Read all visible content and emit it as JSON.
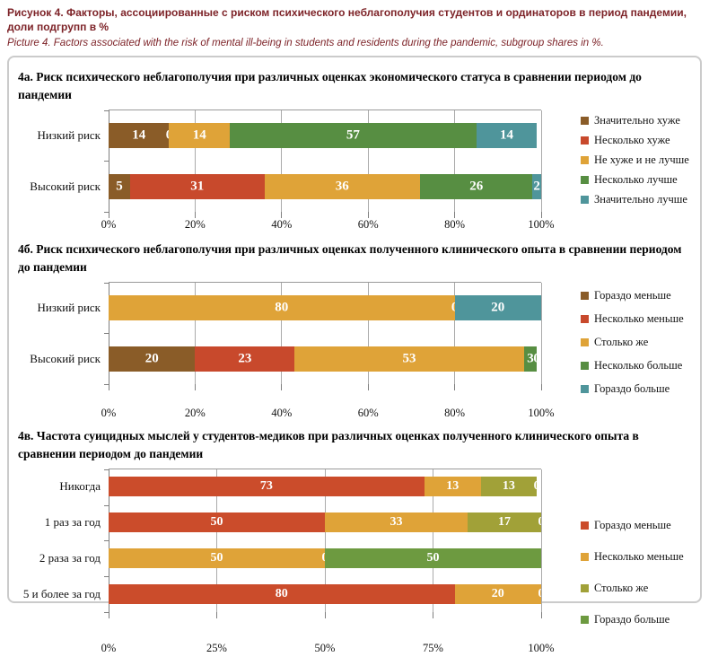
{
  "header": {
    "title_ru": "Рисунок 4. Факторы, ассоциированные с риском психического неблагополучия студентов и ординаторов в период пандемии, доли подгрупп в %",
    "title_en": "Picture 4. Factors associated with the risk of mental ill-being in students and residents during the pandemic, subgroup shares in %."
  },
  "chart_data": [
    {
      "id": "4a",
      "type": "bar",
      "stacked": true,
      "orientation": "horizontal",
      "title": "4а. Риск психического неблагополучия при различных оценках экономического статуса в сравнении периодом до пандемии",
      "categories": [
        "Низкий риск",
        "Высокий риск"
      ],
      "x_tick_labels": [
        "0%",
        "20%",
        "40%",
        "60%",
        "80%",
        "100%"
      ],
      "xlim": [
        0,
        100
      ],
      "legend_position": "right",
      "series": [
        {
          "name": "Значительно хуже",
          "color": "#8a5c28",
          "values": [
            14,
            5
          ]
        },
        {
          "name": "Несколько хуже",
          "color": "#c8492c",
          "values": [
            0,
            31
          ]
        },
        {
          "name": "Не хуже и не лучше",
          "color": "#dfa338",
          "values": [
            14,
            36
          ]
        },
        {
          "name": "Несколько лучше",
          "color": "#578e42",
          "values": [
            57,
            26
          ]
        },
        {
          "name": "Значительно лучше",
          "color": "#4f959b",
          "values": [
            14,
            2
          ]
        }
      ]
    },
    {
      "id": "4b",
      "type": "bar",
      "stacked": true,
      "orientation": "horizontal",
      "title": "4б. Риск психического неблагополучия при различных оценках полученного клинического опыта в сравнении периодом до пандемии",
      "categories": [
        "Низкий риск",
        "Высокий риск"
      ],
      "x_tick_labels": [
        "0%",
        "20%",
        "40%",
        "60%",
        "80%",
        "100%"
      ],
      "xlim": [
        0,
        100
      ],
      "legend_position": "right",
      "series": [
        {
          "name": "Гораздо меньше",
          "color": "#8a5c28",
          "values": [
            0,
            20
          ]
        },
        {
          "name": "Несколько меньше",
          "color": "#c8492c",
          "values": [
            0,
            23
          ]
        },
        {
          "name": "Столько же",
          "color": "#dfa338",
          "values": [
            80,
            53
          ]
        },
        {
          "name": "Несколько больше",
          "color": "#578e42",
          "values": [
            0,
            3
          ]
        },
        {
          "name": "Гораздо больше",
          "color": "#4f959b",
          "values": [
            20,
            0
          ]
        }
      ]
    },
    {
      "id": "4c",
      "type": "bar",
      "stacked": true,
      "orientation": "horizontal",
      "title": "4в. Частота суицидных мыслей у студентов-медиков при различных оценках полученного клинического опыта в сравнении периодом до пандемии",
      "categories": [
        "Никогда",
        "1 раз за год",
        "2 раза за год",
        "5 и более за год"
      ],
      "x_tick_labels": [
        "0%",
        "25%",
        "50%",
        "75%",
        "100%"
      ],
      "xlim": [
        0,
        100
      ],
      "legend_position": "right",
      "series": [
        {
          "name": "Гораздо меньше",
          "color": "#cb4c2b",
          "values": [
            73,
            50,
            0,
            80
          ]
        },
        {
          "name": "Несколько меньше",
          "color": "#dfa338",
          "values": [
            13,
            33,
            50,
            20
          ]
        },
        {
          "name": "Столько же",
          "color": "#a1a138",
          "values": [
            13,
            17,
            0,
            0
          ]
        },
        {
          "name": "Гораздо больше",
          "color": "#6d9a40",
          "values": [
            0,
            0,
            50,
            0
          ]
        }
      ]
    }
  ]
}
